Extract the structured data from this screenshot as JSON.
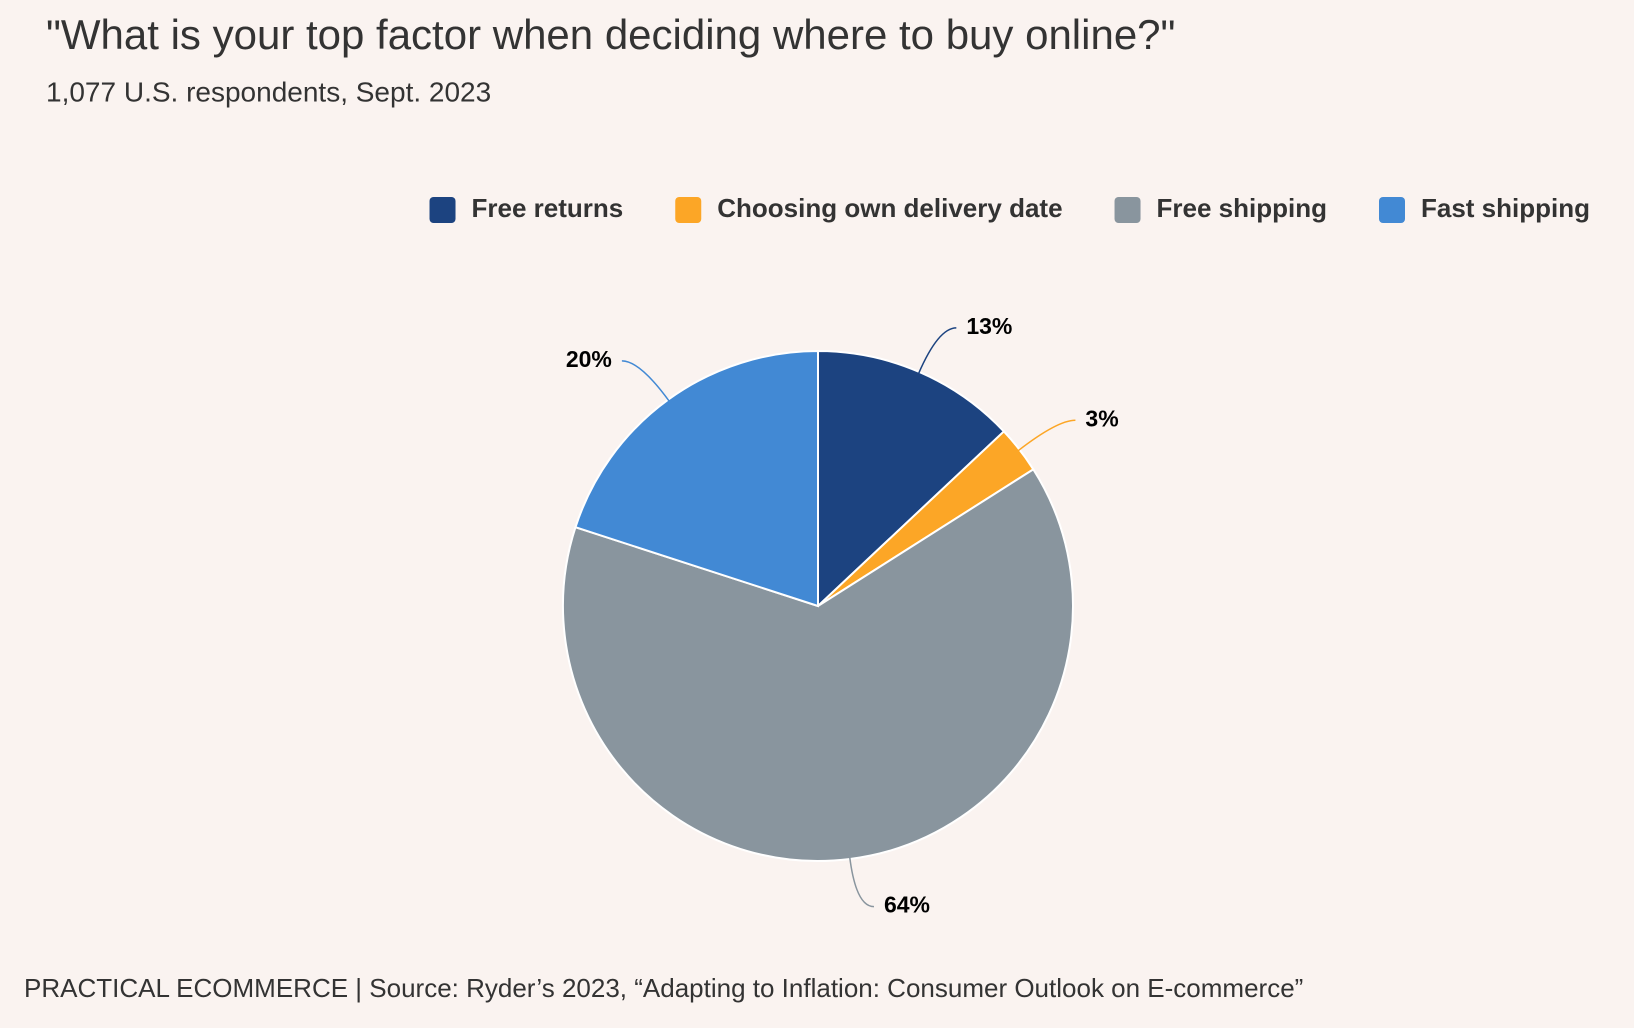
{
  "chart_data": {
    "type": "pie",
    "title": "\"What is your top factor when deciding where to buy online?\"",
    "subtitle": "1,077 U.S. respondents, Sept. 2023",
    "source": "PRACTICAL ECOMMERCE | Source: Ryder’s 2023, “Adapting to Inflation: Consumer Outlook on E-commerce”",
    "categories": [
      "Free returns",
      "Choosing own delivery date",
      "Free shipping",
      "Fast shipping"
    ],
    "values": [
      13,
      3,
      64,
      20
    ],
    "value_labels": [
      "13%",
      "3%",
      "64%",
      "20%"
    ],
    "colors": [
      "#1c4380",
      "#fca626",
      "#89959e",
      "#4289d4"
    ],
    "legend": "top-right"
  }
}
